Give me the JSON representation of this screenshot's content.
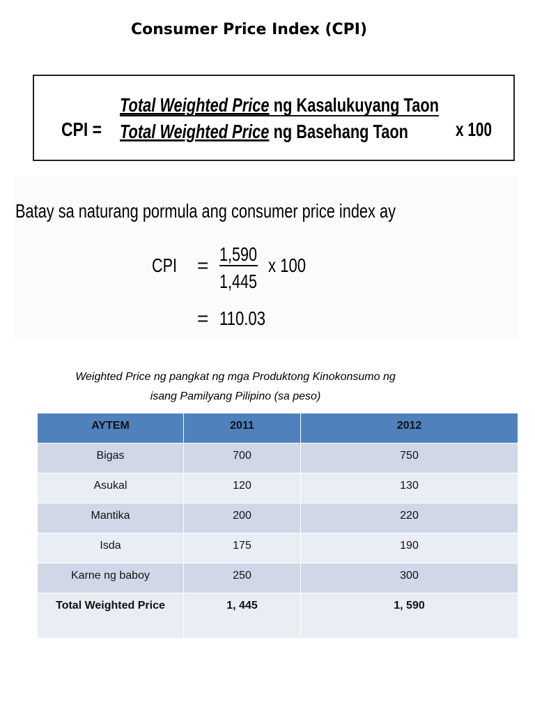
{
  "header": {
    "title": "Consumer Price Index (CPI)"
  },
  "formula": {
    "lhs": "CPI =",
    "numerator": {
      "emphasis": "Total Weighted Price",
      "rest": "ng Kasalukuyang Taon"
    },
    "denominator": {
      "emphasis": "Total Weighted Price",
      "rest": "ng Basehang Taon"
    },
    "multiplier": "x 100"
  },
  "computation": {
    "intro": "Batay sa naturang pormula ang consumer price index ay",
    "lhs": "CPI",
    "equals": "=",
    "numerator": "1,590",
    "denominator": "1,445",
    "multiplier": "x 100",
    "result_equals": "=",
    "result": "110.03"
  },
  "table": {
    "caption": [
      "Weighted Price ng pangkat ng mga Produktong Kinokonsumo ng",
      "isang Pamilyang Pilipino (sa peso)"
    ],
    "header": [
      "AYTEM",
      "2011",
      "2012"
    ],
    "rows": [
      [
        "Bigas",
        "700",
        "750"
      ],
      [
        "Asukal",
        "120",
        "130"
      ],
      [
        "Mantika",
        "200",
        "220"
      ],
      [
        "Isda",
        "175",
        "190"
      ],
      [
        "Karne ng baboy",
        "250",
        "300"
      ]
    ],
    "total": [
      "Total Weighted Price",
      "1, 445",
      "1, 590"
    ]
  }
}
